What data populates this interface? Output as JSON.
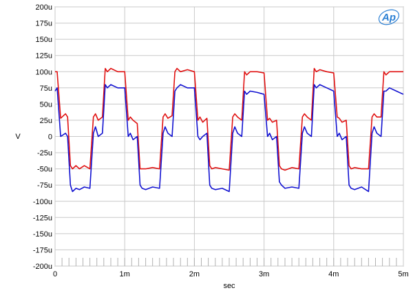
{
  "logo": {
    "text": "Ap",
    "color": "#2a7fd4"
  },
  "chart_data": {
    "type": "line",
    "title": "",
    "xlabel": "sec",
    "ylabel": "V",
    "xlim": [
      0,
      0.005
    ],
    "ylim": [
      -0.0002,
      0.0002
    ],
    "grid": true,
    "x_tick_values": [
      0,
      0.001,
      0.002,
      0.003,
      0.004,
      0.005
    ],
    "x_tick_labels": [
      "0",
      "1m",
      "2m",
      "3m",
      "4m",
      "5m"
    ],
    "y_tick_values": [
      0.0002,
      0.000175,
      0.00015,
      0.000125,
      0.0001,
      7.5e-05,
      5e-05,
      2.5e-05,
      0,
      -2.5e-05,
      -5e-05,
      -7.5e-05,
      -0.0001,
      -0.000125,
      -0.00015,
      -0.000175,
      -0.0002
    ],
    "y_tick_labels": [
      "200u",
      "175u",
      "150u",
      "125u",
      "100u",
      "75u",
      "50u",
      "25u",
      "0",
      "-25u",
      "-50u",
      "-75u",
      "-100u",
      "-125u",
      "-150u",
      "-175u",
      "-200u"
    ],
    "series": [
      {
        "color": "#e01010",
        "x": [
          0,
          3e-05,
          8e-05,
          0.00015,
          0.00018,
          0.00022,
          0.00025,
          0.0003,
          0.00035,
          0.00042,
          0.0005,
          0.00055,
          0.00058,
          0.00062,
          0.00068,
          0.00072,
          0.00075,
          0.0008,
          0.0009,
          0.001,
          0.00105,
          0.00108,
          0.00112,
          0.00118,
          0.00122,
          0.00125,
          0.0013,
          0.0014,
          0.0015,
          0.00155,
          0.00158,
          0.00162,
          0.00168,
          0.00172,
          0.00175,
          0.0018,
          0.0019,
          0.002,
          0.00205,
          0.00208,
          0.00212,
          0.00218,
          0.00222,
          0.00225,
          0.0023,
          0.0024,
          0.0025,
          0.00255,
          0.00258,
          0.00262,
          0.00268,
          0.00272,
          0.00275,
          0.0028,
          0.0029,
          0.003,
          0.00305,
          0.00308,
          0.00312,
          0.00318,
          0.00322,
          0.00325,
          0.0033,
          0.0034,
          0.0035,
          0.00355,
          0.00358,
          0.00362,
          0.00368,
          0.00372,
          0.00375,
          0.0038,
          0.0039,
          0.004,
          0.00405,
          0.00408,
          0.00412,
          0.00418,
          0.00422,
          0.00425,
          0.0043,
          0.0044,
          0.0045,
          0.00455,
          0.00458,
          0.00462,
          0.00468,
          0.00472,
          0.00475,
          0.0048,
          0.0049,
          0.005
        ],
        "y": [
          0.0001,
          0.0001,
          2.8e-05,
          3.5e-05,
          3e-05,
          -4.5e-05,
          -5e-05,
          -4.5e-05,
          -5e-05,
          -4.5e-05,
          -5e-05,
          3e-05,
          3.5e-05,
          2.5e-05,
          3e-05,
          0.000105,
          0.0001,
          0.000105,
          0.0001,
          0.0001,
          2.5e-05,
          3e-05,
          2.5e-05,
          2e-05,
          -5e-05,
          -5e-05,
          -5e-05,
          -4.8e-05,
          -5e-05,
          3e-05,
          3.5e-05,
          2.8e-05,
          3.2e-05,
          0.0001,
          0.000105,
          0.0001,
          0.000103,
          0.0001,
          2.5e-05,
          3e-05,
          2.2e-05,
          2.8e-05,
          -4.5e-05,
          -5e-05,
          -4.8e-05,
          -5e-05,
          -5.2e-05,
          3e-05,
          3.5e-05,
          3e-05,
          2.5e-05,
          0.0001,
          9.5e-05,
          0.0001,
          0.0001,
          9.8e-05,
          2.5e-05,
          2.8e-05,
          2.2e-05,
          2.5e-05,
          -4.5e-05,
          -5e-05,
          -5.2e-05,
          -4.8e-05,
          -5e-05,
          3e-05,
          3.5e-05,
          3e-05,
          2.5e-05,
          0.000105,
          0.0001,
          0.000103,
          0.0001,
          9.8e-05,
          3e-05,
          2.8e-05,
          2.2e-05,
          2.5e-05,
          -4.5e-05,
          -5e-05,
          -4.8e-05,
          -5e-05,
          -5e-05,
          3e-05,
          3.5e-05,
          3e-05,
          3e-05,
          0.0001,
          9.5e-05,
          0.0001,
          0.0001,
          0.0001
        ]
      },
      {
        "color": "#1010d0",
        "x": [
          0,
          3e-05,
          8e-05,
          0.00015,
          0.00018,
          0.00022,
          0.00025,
          0.0003,
          0.00035,
          0.00042,
          0.0005,
          0.00055,
          0.00058,
          0.00062,
          0.00068,
          0.00072,
          0.00075,
          0.0008,
          0.0009,
          0.001,
          0.00105,
          0.00108,
          0.00112,
          0.00118,
          0.00122,
          0.00125,
          0.0013,
          0.0014,
          0.0015,
          0.00155,
          0.00158,
          0.00162,
          0.00168,
          0.00172,
          0.00175,
          0.0018,
          0.0019,
          0.002,
          0.00205,
          0.00208,
          0.00212,
          0.00218,
          0.00222,
          0.00225,
          0.0023,
          0.0024,
          0.0025,
          0.00255,
          0.00258,
          0.00262,
          0.00268,
          0.00272,
          0.00275,
          0.0028,
          0.0029,
          0.003,
          0.00305,
          0.00308,
          0.00312,
          0.00318,
          0.00322,
          0.00325,
          0.0033,
          0.0034,
          0.0035,
          0.00355,
          0.00358,
          0.00362,
          0.00368,
          0.00372,
          0.00375,
          0.0038,
          0.0039,
          0.004,
          0.00405,
          0.00408,
          0.00412,
          0.00418,
          0.00422,
          0.00425,
          0.0043,
          0.0044,
          0.0045,
          0.00455,
          0.00458,
          0.00462,
          0.00468,
          0.00472,
          0.00475,
          0.0048,
          0.0049,
          0.005
        ],
        "y": [
          7e-05,
          7.5e-05,
          0.0,
          5e-06,
          0.0,
          -7.5e-05,
          -8.5e-05,
          -8e-05,
          -8.2e-05,
          -7.8e-05,
          -8e-05,
          5e-06,
          1.5e-05,
          0.0,
          5e-06,
          8e-05,
          7.5e-05,
          8e-05,
          7.5e-05,
          7.5e-05,
          0.0,
          5e-06,
          -5e-06,
          0.0,
          -7.5e-05,
          -8e-05,
          -8.2e-05,
          -7.8e-05,
          -8e-05,
          5e-06,
          1.5e-05,
          5e-06,
          0.0,
          7e-05,
          7.5e-05,
          8e-05,
          7.5e-05,
          7.5e-05,
          0.0,
          -5e-06,
          0.0,
          5e-06,
          -7.5e-05,
          -8e-05,
          -8.2e-05,
          -8e-05,
          -8.5e-05,
          5e-06,
          1.5e-05,
          5e-06,
          0.0,
          7e-05,
          6.5e-05,
          7e-05,
          6.8e-05,
          6.5e-05,
          0.0,
          5e-06,
          -5e-06,
          0.0,
          -7e-05,
          -7.5e-05,
          -8e-05,
          -7.8e-05,
          -8e-05,
          5e-06,
          1.5e-05,
          5e-06,
          0.0,
          8e-05,
          7.5e-05,
          8e-05,
          7.5e-05,
          7e-05,
          0.0,
          5e-06,
          -5e-06,
          0.0,
          -7.5e-05,
          -8e-05,
          -8.2e-05,
          -7.8e-05,
          -8.5e-05,
          5e-06,
          1.5e-05,
          5e-06,
          0.0,
          7e-05,
          7e-05,
          7.5e-05,
          7e-05,
          6.5e-05
        ]
      }
    ]
  }
}
